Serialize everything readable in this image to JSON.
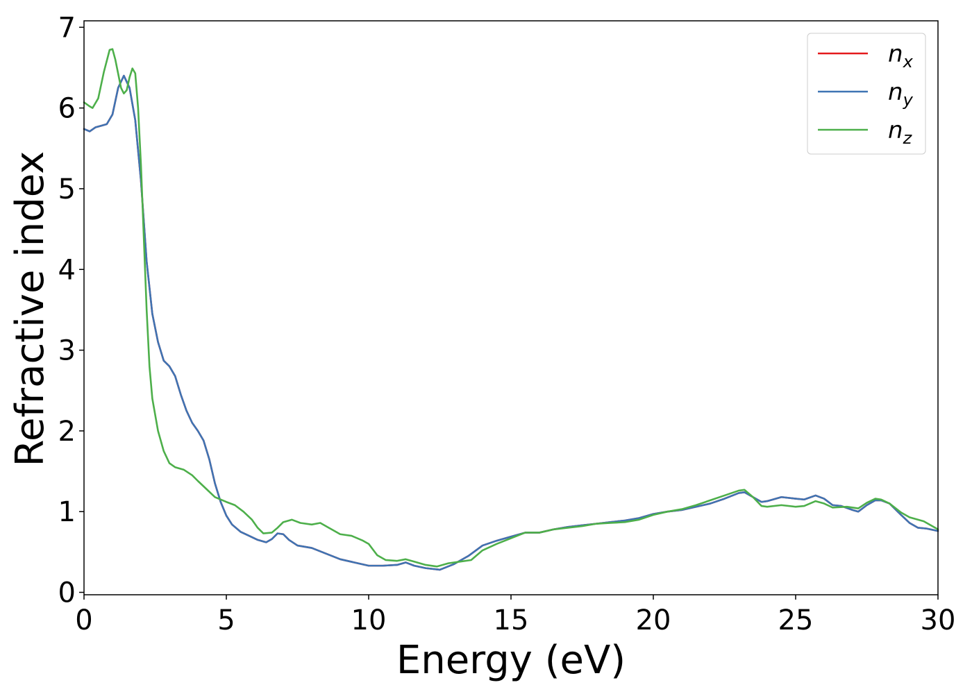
{
  "chart_data": {
    "type": "line",
    "xlabel": "Energy (eV)",
    "ylabel": "Refractive index",
    "xlim": [
      0,
      30
    ],
    "ylim": [
      -0.03,
      7.08
    ],
    "xticks": [
      0,
      5,
      10,
      15,
      20,
      25,
      30
    ],
    "xtick_labels": [
      "0",
      "5",
      "10",
      "15",
      "20",
      "25",
      "30"
    ],
    "yticks": [
      0,
      1,
      2,
      3,
      4,
      5,
      6,
      7
    ],
    "ytick_labels": [
      "0",
      "1",
      "2",
      "3",
      "4",
      "5",
      "6",
      "7"
    ],
    "grid": false,
    "legend_position": "top-right",
    "series": [
      {
        "name": "n",
        "subscript": "x",
        "color": "#e41a1c",
        "points": [
          [
            0,
            5.74
          ],
          [
            0.2,
            5.71
          ],
          [
            0.4,
            5.76
          ],
          [
            0.6,
            5.78
          ],
          [
            0.8,
            5.8
          ],
          [
            1.0,
            5.92
          ],
          [
            1.2,
            6.25
          ],
          [
            1.4,
            6.4
          ],
          [
            1.6,
            6.25
          ],
          [
            1.8,
            5.85
          ],
          [
            2.0,
            5.1
          ],
          [
            2.2,
            4.1
          ],
          [
            2.4,
            3.45
          ],
          [
            2.6,
            3.1
          ],
          [
            2.8,
            2.87
          ],
          [
            3.0,
            2.8
          ],
          [
            3.2,
            2.68
          ],
          [
            3.4,
            2.45
          ],
          [
            3.6,
            2.25
          ],
          [
            3.8,
            2.1
          ],
          [
            4.0,
            2.0
          ],
          [
            4.2,
            1.88
          ],
          [
            4.4,
            1.65
          ],
          [
            4.6,
            1.35
          ],
          [
            4.8,
            1.12
          ],
          [
            5.0,
            0.95
          ],
          [
            5.2,
            0.84
          ],
          [
            5.5,
            0.75
          ],
          [
            5.8,
            0.7
          ],
          [
            6.1,
            0.65
          ],
          [
            6.4,
            0.62
          ],
          [
            6.6,
            0.66
          ],
          [
            6.8,
            0.73
          ],
          [
            7.0,
            0.72
          ],
          [
            7.2,
            0.65
          ],
          [
            7.5,
            0.58
          ],
          [
            8.0,
            0.55
          ],
          [
            8.5,
            0.48
          ],
          [
            9.0,
            0.41
          ],
          [
            9.5,
            0.37
          ],
          [
            10.0,
            0.33
          ],
          [
            10.5,
            0.33
          ],
          [
            11.0,
            0.34
          ],
          [
            11.3,
            0.37
          ],
          [
            11.6,
            0.33
          ],
          [
            12.0,
            0.3
          ],
          [
            12.5,
            0.28
          ],
          [
            13.0,
            0.35
          ],
          [
            13.5,
            0.45
          ],
          [
            14.0,
            0.58
          ],
          [
            14.5,
            0.64
          ],
          [
            15.0,
            0.69
          ],
          [
            15.5,
            0.74
          ],
          [
            16.0,
            0.74
          ],
          [
            16.5,
            0.78
          ],
          [
            17.0,
            0.81
          ],
          [
            17.5,
            0.83
          ],
          [
            18.0,
            0.85
          ],
          [
            18.5,
            0.87
          ],
          [
            19.0,
            0.89
          ],
          [
            19.5,
            0.92
          ],
          [
            20.0,
            0.97
          ],
          [
            20.5,
            1.0
          ],
          [
            21.0,
            1.02
          ],
          [
            21.5,
            1.06
          ],
          [
            22.0,
            1.1
          ],
          [
            22.5,
            1.16
          ],
          [
            23.0,
            1.23
          ],
          [
            23.2,
            1.24
          ],
          [
            23.5,
            1.18
          ],
          [
            23.8,
            1.12
          ],
          [
            24.0,
            1.13
          ],
          [
            24.5,
            1.18
          ],
          [
            25.0,
            1.16
          ],
          [
            25.3,
            1.15
          ],
          [
            25.7,
            1.2
          ],
          [
            26.0,
            1.16
          ],
          [
            26.3,
            1.08
          ],
          [
            26.6,
            1.07
          ],
          [
            27.0,
            1.02
          ],
          [
            27.2,
            1.0
          ],
          [
            27.5,
            1.08
          ],
          [
            27.8,
            1.14
          ],
          [
            28.0,
            1.14
          ],
          [
            28.3,
            1.1
          ],
          [
            28.7,
            0.96
          ],
          [
            29.0,
            0.86
          ],
          [
            29.3,
            0.8
          ],
          [
            29.6,
            0.79
          ],
          [
            30.0,
            0.76
          ]
        ]
      },
      {
        "name": "n",
        "subscript": "y",
        "color": "#3e74b3",
        "points": [
          [
            0,
            5.74
          ],
          [
            0.2,
            5.71
          ],
          [
            0.4,
            5.76
          ],
          [
            0.6,
            5.78
          ],
          [
            0.8,
            5.8
          ],
          [
            1.0,
            5.92
          ],
          [
            1.2,
            6.25
          ],
          [
            1.4,
            6.4
          ],
          [
            1.6,
            6.25
          ],
          [
            1.8,
            5.85
          ],
          [
            2.0,
            5.1
          ],
          [
            2.2,
            4.1
          ],
          [
            2.4,
            3.45
          ],
          [
            2.6,
            3.1
          ],
          [
            2.8,
            2.87
          ],
          [
            3.0,
            2.8
          ],
          [
            3.2,
            2.68
          ],
          [
            3.4,
            2.45
          ],
          [
            3.6,
            2.25
          ],
          [
            3.8,
            2.1
          ],
          [
            4.0,
            2.0
          ],
          [
            4.2,
            1.88
          ],
          [
            4.4,
            1.65
          ],
          [
            4.6,
            1.35
          ],
          [
            4.8,
            1.12
          ],
          [
            5.0,
            0.95
          ],
          [
            5.2,
            0.84
          ],
          [
            5.5,
            0.75
          ],
          [
            5.8,
            0.7
          ],
          [
            6.1,
            0.65
          ],
          [
            6.4,
            0.62
          ],
          [
            6.6,
            0.66
          ],
          [
            6.8,
            0.73
          ],
          [
            7.0,
            0.72
          ],
          [
            7.2,
            0.65
          ],
          [
            7.5,
            0.58
          ],
          [
            8.0,
            0.55
          ],
          [
            8.5,
            0.48
          ],
          [
            9.0,
            0.41
          ],
          [
            9.5,
            0.37
          ],
          [
            10.0,
            0.33
          ],
          [
            10.5,
            0.33
          ],
          [
            11.0,
            0.34
          ],
          [
            11.3,
            0.37
          ],
          [
            11.6,
            0.33
          ],
          [
            12.0,
            0.3
          ],
          [
            12.5,
            0.28
          ],
          [
            13.0,
            0.35
          ],
          [
            13.5,
            0.45
          ],
          [
            14.0,
            0.58
          ],
          [
            14.5,
            0.64
          ],
          [
            15.0,
            0.69
          ],
          [
            15.5,
            0.74
          ],
          [
            16.0,
            0.74
          ],
          [
            16.5,
            0.78
          ],
          [
            17.0,
            0.81
          ],
          [
            17.5,
            0.83
          ],
          [
            18.0,
            0.85
          ],
          [
            18.5,
            0.87
          ],
          [
            19.0,
            0.89
          ],
          [
            19.5,
            0.92
          ],
          [
            20.0,
            0.97
          ],
          [
            20.5,
            1.0
          ],
          [
            21.0,
            1.02
          ],
          [
            21.5,
            1.06
          ],
          [
            22.0,
            1.1
          ],
          [
            22.5,
            1.16
          ],
          [
            23.0,
            1.23
          ],
          [
            23.2,
            1.24
          ],
          [
            23.5,
            1.18
          ],
          [
            23.8,
            1.12
          ],
          [
            24.0,
            1.13
          ],
          [
            24.5,
            1.18
          ],
          [
            25.0,
            1.16
          ],
          [
            25.3,
            1.15
          ],
          [
            25.7,
            1.2
          ],
          [
            26.0,
            1.16
          ],
          [
            26.3,
            1.08
          ],
          [
            26.6,
            1.07
          ],
          [
            27.0,
            1.02
          ],
          [
            27.2,
            1.0
          ],
          [
            27.5,
            1.08
          ],
          [
            27.8,
            1.14
          ],
          [
            28.0,
            1.14
          ],
          [
            28.3,
            1.1
          ],
          [
            28.7,
            0.96
          ],
          [
            29.0,
            0.86
          ],
          [
            29.3,
            0.8
          ],
          [
            29.6,
            0.79
          ],
          [
            30.0,
            0.76
          ]
        ]
      },
      {
        "name": "n",
        "subscript": "z",
        "color": "#4daf4a",
        "points": [
          [
            0,
            6.07
          ],
          [
            0.2,
            6.02
          ],
          [
            0.3,
            6.0
          ],
          [
            0.5,
            6.12
          ],
          [
            0.7,
            6.45
          ],
          [
            0.9,
            6.72
          ],
          [
            1.0,
            6.73
          ],
          [
            1.1,
            6.6
          ],
          [
            1.3,
            6.25
          ],
          [
            1.4,
            6.18
          ],
          [
            1.5,
            6.22
          ],
          [
            1.6,
            6.38
          ],
          [
            1.7,
            6.49
          ],
          [
            1.8,
            6.43
          ],
          [
            1.9,
            6.0
          ],
          [
            2.0,
            5.3
          ],
          [
            2.1,
            4.4
          ],
          [
            2.2,
            3.5
          ],
          [
            2.3,
            2.8
          ],
          [
            2.4,
            2.4
          ],
          [
            2.6,
            2.0
          ],
          [
            2.8,
            1.75
          ],
          [
            3.0,
            1.6
          ],
          [
            3.2,
            1.55
          ],
          [
            3.5,
            1.52
          ],
          [
            3.8,
            1.45
          ],
          [
            4.0,
            1.38
          ],
          [
            4.3,
            1.28
          ],
          [
            4.6,
            1.18
          ],
          [
            5.0,
            1.12
          ],
          [
            5.3,
            1.08
          ],
          [
            5.6,
            1.0
          ],
          [
            5.9,
            0.9
          ],
          [
            6.1,
            0.8
          ],
          [
            6.3,
            0.73
          ],
          [
            6.6,
            0.74
          ],
          [
            6.8,
            0.8
          ],
          [
            7.0,
            0.87
          ],
          [
            7.3,
            0.9
          ],
          [
            7.6,
            0.86
          ],
          [
            8.0,
            0.84
          ],
          [
            8.3,
            0.86
          ],
          [
            8.6,
            0.8
          ],
          [
            9.0,
            0.72
          ],
          [
            9.4,
            0.7
          ],
          [
            9.8,
            0.64
          ],
          [
            10.0,
            0.6
          ],
          [
            10.3,
            0.46
          ],
          [
            10.6,
            0.4
          ],
          [
            11.0,
            0.39
          ],
          [
            11.3,
            0.41
          ],
          [
            11.6,
            0.38
          ],
          [
            12.0,
            0.34
          ],
          [
            12.4,
            0.32
          ],
          [
            12.8,
            0.36
          ],
          [
            13.2,
            0.38
          ],
          [
            13.6,
            0.4
          ],
          [
            14.0,
            0.52
          ],
          [
            14.5,
            0.6
          ],
          [
            15.0,
            0.67
          ],
          [
            15.5,
            0.74
          ],
          [
            16.0,
            0.74
          ],
          [
            16.5,
            0.78
          ],
          [
            17.0,
            0.8
          ],
          [
            17.5,
            0.82
          ],
          [
            18.0,
            0.85
          ],
          [
            18.5,
            0.86
          ],
          [
            19.0,
            0.87
          ],
          [
            19.5,
            0.9
          ],
          [
            20.0,
            0.96
          ],
          [
            20.5,
            1.0
          ],
          [
            21.0,
            1.03
          ],
          [
            21.5,
            1.08
          ],
          [
            22.0,
            1.14
          ],
          [
            22.5,
            1.2
          ],
          [
            23.0,
            1.26
          ],
          [
            23.2,
            1.27
          ],
          [
            23.5,
            1.18
          ],
          [
            23.8,
            1.07
          ],
          [
            24.0,
            1.06
          ],
          [
            24.5,
            1.08
          ],
          [
            25.0,
            1.06
          ],
          [
            25.3,
            1.07
          ],
          [
            25.7,
            1.13
          ],
          [
            26.0,
            1.1
          ],
          [
            26.3,
            1.05
          ],
          [
            26.8,
            1.06
          ],
          [
            27.2,
            1.04
          ],
          [
            27.5,
            1.11
          ],
          [
            27.8,
            1.16
          ],
          [
            28.0,
            1.15
          ],
          [
            28.3,
            1.1
          ],
          [
            28.7,
            0.99
          ],
          [
            29.0,
            0.93
          ],
          [
            29.5,
            0.88
          ],
          [
            30.0,
            0.78
          ]
        ]
      }
    ]
  }
}
